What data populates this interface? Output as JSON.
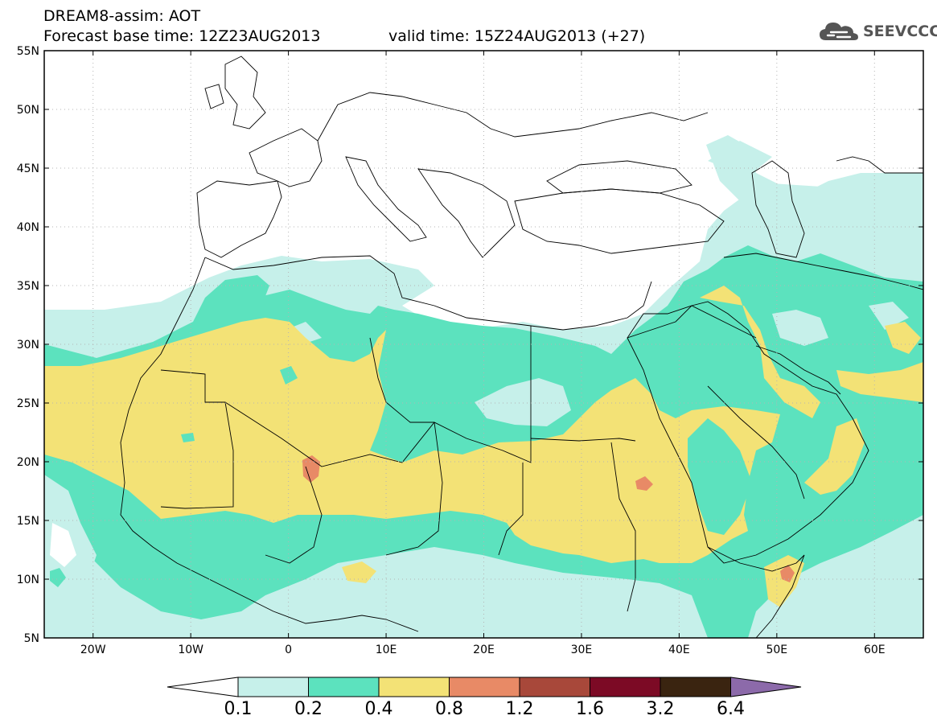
{
  "header": {
    "title_line1": "DREAM8-assim: AOT",
    "title_line2": "Forecast base time: 12Z23AUG2013",
    "valid_time": "valid time: 15Z24AUG2013 (+27)"
  },
  "logo": {
    "text": "SEEVCCC",
    "icon": "cloud-icon"
  },
  "map": {
    "lon_range": [
      -25,
      65
    ],
    "lat_range": [
      5,
      55
    ],
    "lat_ticks": [
      {
        "lat": 55,
        "label": "55N"
      },
      {
        "lat": 50,
        "label": "50N"
      },
      {
        "lat": 45,
        "label": "45N"
      },
      {
        "lat": 40,
        "label": "40N"
      },
      {
        "lat": 35,
        "label": "35N"
      },
      {
        "lat": 30,
        "label": "30N"
      },
      {
        "lat": 25,
        "label": "25N"
      },
      {
        "lat": 20,
        "label": "20N"
      },
      {
        "lat": 15,
        "label": "15N"
      },
      {
        "lat": 10,
        "label": "10N"
      },
      {
        "lat": 5,
        "label": "5N"
      }
    ],
    "lon_ticks": [
      {
        "lon": -20,
        "label": "20W"
      },
      {
        "lon": -10,
        "label": "10W"
      },
      {
        "lon": 0,
        "label": "0"
      },
      {
        "lon": 10,
        "label": "10E"
      },
      {
        "lon": 20,
        "label": "20E"
      },
      {
        "lon": 30,
        "label": "30E"
      },
      {
        "lon": 40,
        "label": "40E"
      },
      {
        "lon": 50,
        "label": "50E"
      },
      {
        "lon": 60,
        "label": "60E"
      }
    ],
    "colors": {
      "c1": "#c6f0ea",
      "c2": "#5ce2be",
      "c3": "#f3e276",
      "c4": "#e88a66",
      "c5": "#a8483a",
      "c6": "#7c0a25",
      "c7": "#3a2410",
      "c8": "#8c6aaa"
    }
  },
  "colorbar": {
    "labels": [
      "0.1",
      "0.2",
      "0.4",
      "0.8",
      "1.2",
      "1.6",
      "3.2",
      "6.4"
    ],
    "colors": [
      "#c6f0ea",
      "#5ce2be",
      "#f3e276",
      "#e88a66",
      "#a8483a",
      "#7c0a25",
      "#3a2410"
    ],
    "under_color": "#ffffff",
    "over_color": "#8c6aaa"
  }
}
